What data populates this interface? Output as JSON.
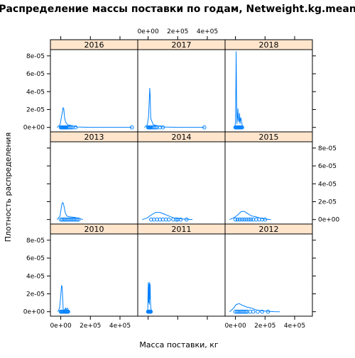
{
  "chart_data": {
    "type": "line",
    "title": "Распределение массы поставки по годам, Netweight.kg.mean",
    "xlabel": "Масса поставки, кг",
    "ylabel": "Плотность распределения",
    "xlim": [
      -70000,
      520000
    ],
    "ylim": [
      -5e-06,
      8.7e-05
    ],
    "x_ticks": [
      0,
      200000,
      400000
    ],
    "x_tick_labels": [
      "0e+00",
      "2e+05",
      "4e+05"
    ],
    "y_ticks": [
      0,
      2e-05,
      4e-05,
      6e-05,
      8e-05
    ],
    "y_tick_labels": [
      "0e+00",
      "2e-05",
      "4e-05",
      "6e-05",
      "8e-05"
    ],
    "grid": false,
    "layout": "3x3 lattice panels",
    "colors": {
      "line": "#0080ff",
      "strip": "#ffe5cc",
      "frame": "#000000"
    },
    "panels": [
      {
        "name": "2016",
        "density": [
          [
            -25000,
            0
          ],
          [
            -5000,
            3e-06
          ],
          [
            5000,
            1.2e-05
          ],
          [
            12000,
            1.8e-05
          ],
          [
            16000,
            2.2e-05
          ],
          [
            20000,
            2.1e-05
          ],
          [
            25000,
            1.2e-05
          ],
          [
            32000,
            6e-06
          ],
          [
            45000,
            3e-06
          ],
          [
            60000,
            2.5e-06
          ],
          [
            75000,
            2e-06
          ],
          [
            90000,
            1.2e-06
          ],
          [
            110000,
            5e-07
          ],
          [
            200000,
            1e-07
          ],
          [
            480000,
            1e-07
          ]
        ],
        "points": [
          0,
          5000,
          10000,
          15000,
          20000,
          25000,
          30000,
          35000,
          40000,
          50000,
          60000,
          70000,
          80000,
          100000,
          480000
        ]
      },
      {
        "name": "2017",
        "density": [
          [
            -25000,
            0
          ],
          [
            -5000,
            3e-06
          ],
          [
            3000,
            1.2e-05
          ],
          [
            8000,
            3.2e-05
          ],
          [
            11000,
            4.4e-05
          ],
          [
            14000,
            3.5e-05
          ],
          [
            18000,
            1e-05
          ],
          [
            25000,
            7e-06
          ],
          [
            35000,
            3e-06
          ],
          [
            60000,
            2e-06
          ],
          [
            100000,
            5e-07
          ],
          [
            200000,
            1e-07
          ],
          [
            380000,
            1e-07
          ]
        ],
        "points": [
          0,
          5000,
          10000,
          15000,
          20000,
          30000,
          40000,
          50000,
          60000,
          80000,
          100000,
          380000
        ]
      },
      {
        "name": "2018",
        "density": [
          [
            -5000,
            0
          ],
          [
            0,
            5e-06
          ],
          [
            3000,
            4.5e-05
          ],
          [
            5000,
            8.5e-05
          ],
          [
            7000,
            4e-05
          ],
          [
            10000,
            4e-06
          ],
          [
            14000,
            1.2e-05
          ],
          [
            17000,
            2.1e-05
          ],
          [
            20000,
            9e-06
          ],
          [
            24000,
            6e-06
          ],
          [
            28000,
            1.6e-05
          ],
          [
            31000,
            4e-06
          ],
          [
            36000,
            1.1e-05
          ],
          [
            40000,
            8e-06
          ],
          [
            46000,
            2e-06
          ],
          [
            50000,
            0
          ]
        ],
        "points": [
          0,
          3000,
          6000,
          10000,
          15000,
          20000,
          25000,
          30000,
          35000,
          40000,
          45000
        ]
      },
      {
        "name": "2013",
        "density": [
          [
            -25000,
            0
          ],
          [
            -5000,
            4e-06
          ],
          [
            5000,
            1.5e-05
          ],
          [
            12000,
            1.9e-05
          ],
          [
            18000,
            1.8e-05
          ],
          [
            24000,
            1.3e-05
          ],
          [
            30000,
            8e-06
          ],
          [
            40000,
            4e-06
          ],
          [
            60000,
            3e-06
          ],
          [
            90000,
            2.5e-06
          ],
          [
            120000,
            1.5e-06
          ],
          [
            150000,
            0
          ]
        ],
        "points": [
          0,
          10000,
          20000,
          30000,
          40000,
          50000,
          60000,
          70000,
          80000,
          90000,
          100000,
          110000,
          120000
        ]
      },
      {
        "name": "2014",
        "density": [
          [
            -40000,
            0
          ],
          [
            -10000,
            1.5e-06
          ],
          [
            20000,
            5e-06
          ],
          [
            50000,
            8e-06
          ],
          [
            80000,
            8e-06
          ],
          [
            110000,
            6e-06
          ],
          [
            140000,
            4e-06
          ],
          [
            170000,
            2e-06
          ],
          [
            220000,
            8e-07
          ],
          [
            270000,
            3e-07
          ],
          [
            300000,
            1e-07
          ]
        ],
        "points": [
          20000,
          40000,
          60000,
          80000,
          100000,
          120000,
          140000,
          170000,
          190000,
          200000,
          220000,
          260000
        ]
      },
      {
        "name": "2015",
        "density": [
          [
            -40000,
            0
          ],
          [
            -10000,
            2e-06
          ],
          [
            15000,
            5e-06
          ],
          [
            40000,
            9e-06
          ],
          [
            60000,
            9e-06
          ],
          [
            80000,
            7e-06
          ],
          [
            110000,
            4e-06
          ],
          [
            140000,
            3e-06
          ],
          [
            170000,
            1.5e-06
          ],
          [
            200000,
            5e-07
          ],
          [
            240000,
            1e-07
          ]
        ],
        "points": [
          0,
          15000,
          30000,
          45000,
          60000,
          75000,
          90000,
          105000,
          120000,
          140000,
          160000,
          180000,
          200000
        ]
      },
      {
        "name": "2010",
        "density": [
          [
            -20000,
            0
          ],
          [
            -8000,
            4e-06
          ],
          [
            0,
            1.8e-05
          ],
          [
            5000,
            2.9e-05
          ],
          [
            9000,
            2.8e-05
          ],
          [
            13000,
            1.5e-05
          ],
          [
            17000,
            2e-06
          ],
          [
            22000,
            5e-07
          ],
          [
            28000,
            3e-06
          ],
          [
            32000,
            4e-06
          ],
          [
            36000,
            1.5e-06
          ],
          [
            42000,
            4e-06
          ],
          [
            48000,
            3.5e-06
          ],
          [
            53000,
            5e-07
          ],
          [
            58000,
            0
          ]
        ],
        "points": [
          0,
          5000,
          10000,
          15000,
          25000,
          30000,
          35000,
          40000,
          45000,
          50000
        ]
      },
      {
        "name": "2011",
        "density": [
          [
            -5000,
            0
          ],
          [
            -2000,
            3e-06
          ],
          [
            0,
            2.5e-05
          ],
          [
            2000,
            3.3e-05
          ],
          [
            4000,
            1e-05
          ],
          [
            6000,
            3.1e-05
          ],
          [
            8000,
            8e-06
          ],
          [
            10000,
            3.3e-05
          ],
          [
            12000,
            1.4e-05
          ],
          [
            14000,
            3.1e-05
          ],
          [
            16000,
            1.2e-05
          ],
          [
            18000,
            5e-06
          ],
          [
            22000,
            1e-06
          ],
          [
            26000,
            0
          ]
        ],
        "points": [
          0,
          2000,
          4000,
          6000,
          8000,
          10000,
          12000,
          14000,
          16000,
          18000
        ]
      },
      {
        "name": "2012",
        "density": [
          [
            -40000,
            0
          ],
          [
            -15000,
            3.5e-06
          ],
          [
            5000,
            8e-06
          ],
          [
            25000,
            9e-06
          ],
          [
            50000,
            7e-06
          ],
          [
            80000,
            5e-06
          ],
          [
            110000,
            4e-06
          ],
          [
            140000,
            2e-06
          ],
          [
            180000,
            1e-06
          ],
          [
            220000,
            5e-07
          ],
          [
            260000,
            1e-07
          ],
          [
            300000,
            0
          ]
        ],
        "points": [
          0,
          10000,
          20000,
          30000,
          40000,
          50000,
          60000,
          70000,
          80000,
          100000,
          120000,
          150000,
          180000,
          220000
        ]
      }
    ]
  }
}
